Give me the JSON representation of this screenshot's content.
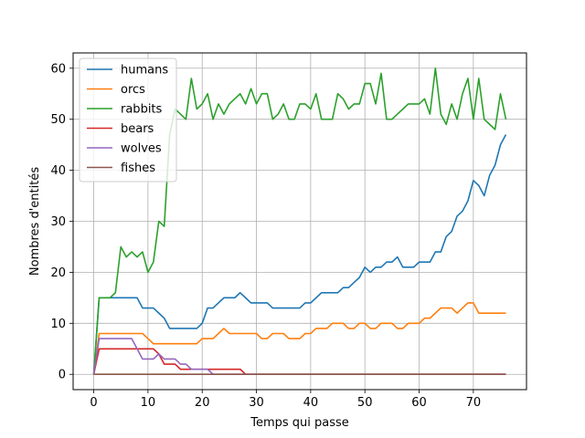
{
  "chart_data": {
    "type": "line",
    "title": "",
    "xlabel": "Temps qui passe",
    "ylabel": "Nombres d'entités",
    "xlim": [
      -3.8,
      79.8
    ],
    "ylim": [
      -3,
      63
    ],
    "xticks": [
      0,
      10,
      20,
      30,
      40,
      50,
      60,
      70
    ],
    "yticks": [
      0,
      10,
      20,
      30,
      40,
      50,
      60
    ],
    "grid": true,
    "legend_position": "upper-left",
    "x": [
      0,
      1,
      2,
      3,
      4,
      5,
      6,
      7,
      8,
      9,
      10,
      11,
      12,
      13,
      14,
      15,
      16,
      17,
      18,
      19,
      20,
      21,
      22,
      23,
      24,
      25,
      26,
      27,
      28,
      29,
      30,
      31,
      32,
      33,
      34,
      35,
      36,
      37,
      38,
      39,
      40,
      41,
      42,
      43,
      44,
      45,
      46,
      47,
      48,
      49,
      50,
      51,
      52,
      53,
      54,
      55,
      56,
      57,
      58,
      59,
      60,
      61,
      62,
      63,
      64,
      65,
      66,
      67,
      68,
      69,
      70,
      71,
      72,
      73,
      74,
      75,
      76
    ],
    "series": [
      {
        "name": "humans",
        "color": "#1f77b4",
        "values": [
          0,
          15,
          15,
          15,
          15,
          15,
          15,
          15,
          15,
          13,
          13,
          13,
          12,
          11,
          9,
          9,
          9,
          9,
          9,
          9,
          10,
          13,
          13,
          14,
          15,
          15,
          15,
          16,
          15,
          14,
          14,
          14,
          14,
          13,
          13,
          13,
          13,
          13,
          13,
          14,
          14,
          15,
          16,
          16,
          16,
          16,
          17,
          17,
          18,
          19,
          21,
          20,
          21,
          21,
          22,
          22,
          23,
          21,
          21,
          21,
          22,
          22,
          22,
          24,
          24,
          27,
          28,
          31,
          32,
          34,
          38,
          37,
          35,
          39,
          41,
          45,
          47
        ]
      },
      {
        "name": "orcs",
        "color": "#ff7f0e",
        "values": [
          0,
          8,
          8,
          8,
          8,
          8,
          8,
          8,
          8,
          8,
          7,
          6,
          6,
          6,
          6,
          6,
          6,
          6,
          6,
          6,
          7,
          7,
          7,
          8,
          9,
          8,
          8,
          8,
          8,
          8,
          8,
          7,
          7,
          8,
          8,
          8,
          7,
          7,
          7,
          8,
          8,
          9,
          9,
          9,
          10,
          10,
          10,
          9,
          9,
          10,
          10,
          9,
          9,
          10,
          10,
          10,
          9,
          9,
          10,
          10,
          10,
          11,
          11,
          12,
          13,
          13,
          13,
          12,
          13,
          14,
          14,
          12,
          12,
          12,
          12,
          12,
          12
        ]
      },
      {
        "name": "rabbits",
        "color": "#2ca02c",
        "values": [
          0,
          15,
          15,
          15,
          16,
          25,
          23,
          24,
          23,
          24,
          20,
          22,
          30,
          29,
          47,
          52,
          51,
          50,
          58,
          52,
          53,
          55,
          50,
          53,
          51,
          53,
          54,
          55,
          53,
          56,
          53,
          55,
          55,
          50,
          51,
          53,
          50,
          50,
          53,
          53,
          52,
          55,
          50,
          50,
          50,
          55,
          54,
          52,
          53,
          53,
          57,
          57,
          53,
          59,
          50,
          50,
          51,
          52,
          53,
          53,
          53,
          54,
          51,
          60,
          51,
          49,
          53,
          50,
          55,
          58,
          50,
          58,
          50,
          49,
          48,
          55,
          50
        ]
      },
      {
        "name": "bears",
        "color": "#d62728",
        "values": [
          0,
          5,
          5,
          5,
          5,
          5,
          5,
          5,
          5,
          5,
          5,
          5,
          4,
          2,
          2,
          2,
          1,
          1,
          1,
          1,
          1,
          1,
          1,
          1,
          1,
          1,
          1,
          1,
          0,
          0,
          0,
          0,
          0,
          0,
          0,
          0,
          0,
          0,
          0,
          0,
          0,
          0,
          0,
          0,
          0,
          0,
          0,
          0,
          0,
          0,
          0,
          0,
          0,
          0,
          0,
          0,
          0,
          0,
          0,
          0,
          0,
          0,
          0,
          0,
          0,
          0,
          0,
          0,
          0,
          0,
          0,
          0,
          0,
          0,
          0,
          0,
          0
        ]
      },
      {
        "name": "wolves",
        "color": "#9467bd",
        "values": [
          0,
          7,
          7,
          7,
          7,
          7,
          7,
          7,
          5,
          3,
          3,
          3,
          4,
          3,
          3,
          3,
          2,
          2,
          1,
          1,
          1,
          1,
          0,
          0,
          0,
          0,
          0,
          0,
          0,
          0,
          0,
          0,
          0,
          0,
          0,
          0,
          0,
          0,
          0,
          0,
          0,
          0,
          0,
          0,
          0,
          0,
          0,
          0,
          0,
          0,
          0,
          0,
          0,
          0,
          0,
          0,
          0,
          0,
          0,
          0,
          0,
          0,
          0,
          0,
          0,
          0,
          0,
          0,
          0,
          0,
          0,
          0,
          0,
          0,
          0,
          0,
          0
        ]
      },
      {
        "name": "fishes",
        "color": "#8c564b",
        "values": [
          0,
          0,
          0,
          0,
          0,
          0,
          0,
          0,
          0,
          0,
          0,
          0,
          0,
          0,
          0,
          0,
          0,
          0,
          0,
          0,
          0,
          0,
          0,
          0,
          0,
          0,
          0,
          0,
          0,
          0,
          0,
          0,
          0,
          0,
          0,
          0,
          0,
          0,
          0,
          0,
          0,
          0,
          0,
          0,
          0,
          0,
          0,
          0,
          0,
          0,
          0,
          0,
          0,
          0,
          0,
          0,
          0,
          0,
          0,
          0,
          0,
          0,
          0,
          0,
          0,
          0,
          0,
          0,
          0,
          0,
          0,
          0,
          0,
          0,
          0,
          0,
          0
        ]
      }
    ]
  }
}
